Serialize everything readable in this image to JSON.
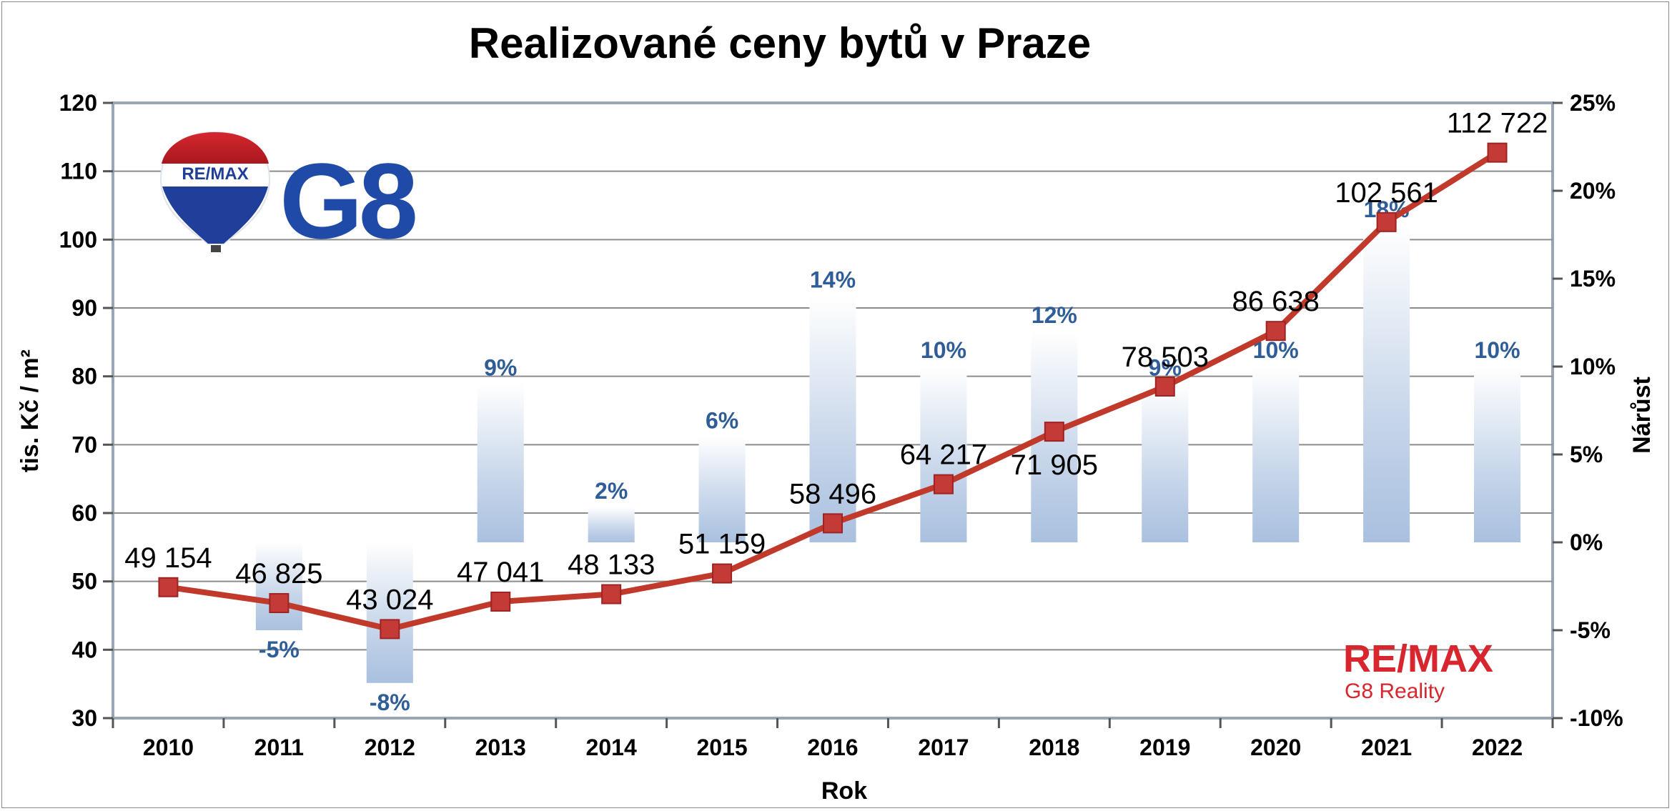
{
  "chart_data": {
    "type": "line",
    "title": "Realizované ceny bytů v Praze",
    "xlabel": "Rok",
    "ylabel_left": "tis. Kč / m²",
    "ylabel_right": "Nárůst",
    "ylim_left": [
      30,
      120
    ],
    "ylim_right": [
      -0.1,
      0.25
    ],
    "y_ticks_left": [
      "30",
      "40",
      "50",
      "60",
      "70",
      "80",
      "90",
      "100",
      "110",
      "120"
    ],
    "y_ticks_right": [
      "-10%",
      "-5%",
      "0%",
      "5%",
      "10%",
      "15%",
      "20%",
      "25%"
    ],
    "categories": [
      "2010",
      "2011",
      "2012",
      "2013",
      "2014",
      "2015",
      "2016",
      "2017",
      "2018",
      "2019",
      "2020",
      "2021",
      "2022"
    ],
    "grid": true,
    "series": [
      {
        "type": "line",
        "axis": "left",
        "color": "#c0392b",
        "values": [
          49.154,
          46.825,
          43.024,
          47.041,
          48.133,
          51.159,
          58.496,
          64.217,
          71.905,
          78.503,
          86.638,
          102.561,
          112.722
        ],
        "labels": [
          "49 154",
          "46 825",
          "43 024",
          "47 041",
          "48 133",
          "51 159",
          "58 496",
          "64 217",
          "71 905",
          "78 503",
          "86 638",
          "102 561",
          "112 722"
        ]
      },
      {
        "type": "bar",
        "axis": "right",
        "color": "#9fb8da",
        "values": [
          0,
          -0.05,
          -0.08,
          0.09,
          0.02,
          0.06,
          0.14,
          0.1,
          0.12,
          0.09,
          0.1,
          0.18,
          0.1
        ],
        "labels": [
          "",
          "-5%",
          "-8%",
          "9%",
          "2%",
          "6%",
          "14%",
          "10%",
          "12%",
          "9%",
          "10%",
          "18%",
          "10%"
        ]
      }
    ]
  },
  "logos": {
    "top_brand": "RE/MAX",
    "top_office": "G8",
    "bottom_brand": "RE/MAX",
    "bottom_office": "G8 Reality"
  }
}
